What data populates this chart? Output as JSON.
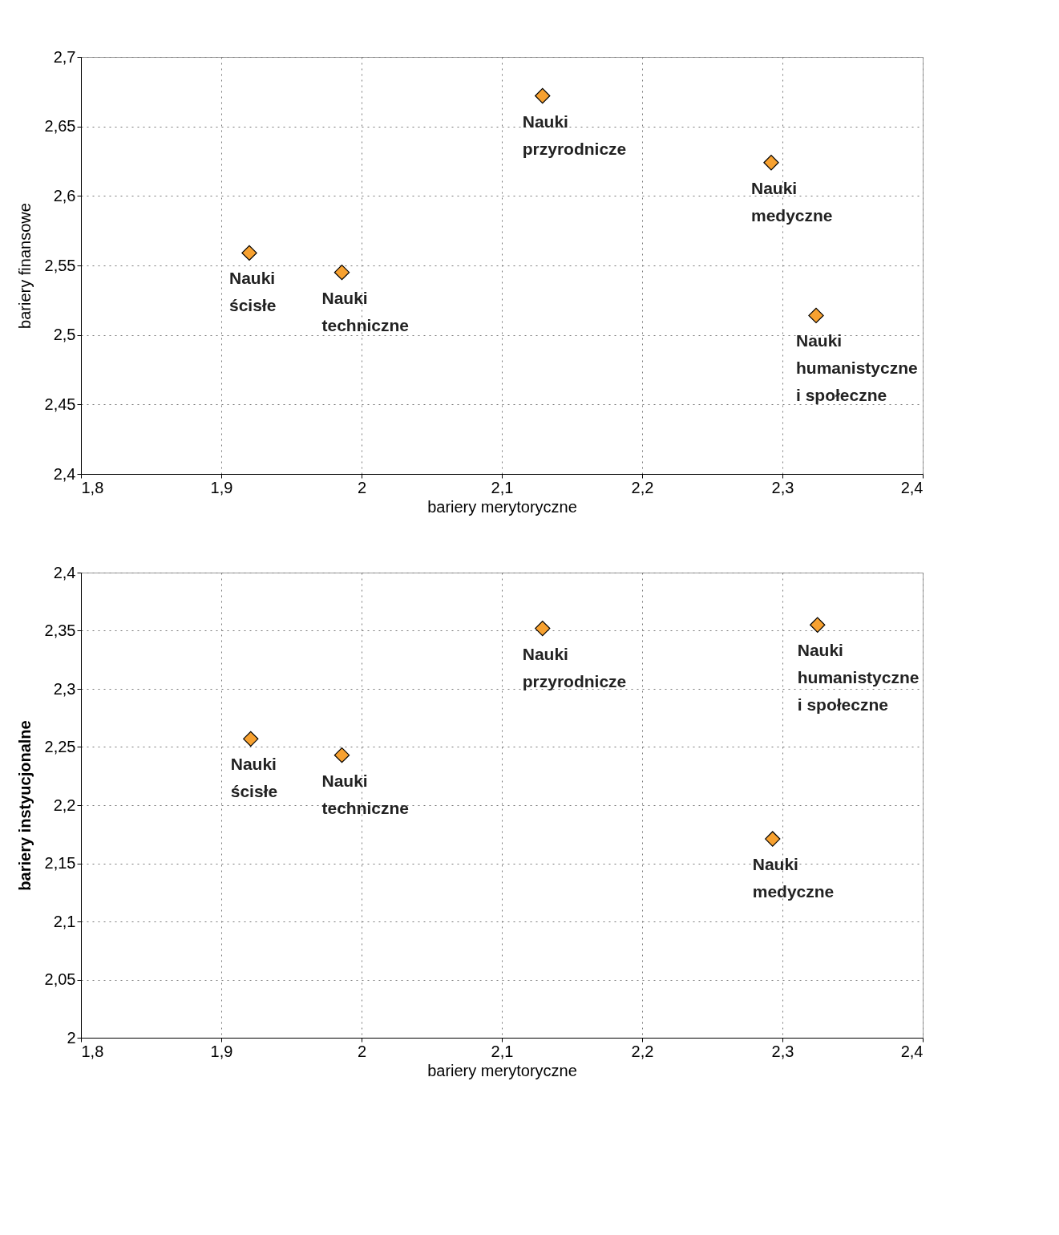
{
  "chart_data": [
    {
      "type": "scatter",
      "xlabel": "bariery merytoryczne",
      "ylabel": "bariery finansowe",
      "grid": true,
      "marker": "diamond",
      "xlim": [
        1.8,
        2.4
      ],
      "xticks": [
        {
          "value": 1.8,
          "label": "1,8"
        },
        {
          "value": 1.9,
          "label": "1,9"
        },
        {
          "value": 2,
          "label": "2"
        },
        {
          "value": 2.1,
          "label": "2,1"
        },
        {
          "value": 2.2,
          "label": "2,2"
        },
        {
          "value": 2.3,
          "label": "2,3"
        },
        {
          "value": 2.4,
          "label": "2,4"
        }
      ],
      "ylim": [
        2.4,
        2.7
      ],
      "yticks": [
        {
          "value": 2.4,
          "label": "2,4"
        },
        {
          "value": 2.45,
          "label": "2,45"
        },
        {
          "value": 2.5,
          "label": "2,5"
        },
        {
          "value": 2.55,
          "label": "2,55"
        },
        {
          "value": 2.6,
          "label": "2,6"
        },
        {
          "value": 2.65,
          "label": "2,65"
        },
        {
          "value": 2.7,
          "label": "2,7"
        }
      ],
      "series": [
        {
          "color": "#f7a130",
          "x": [
            1.92,
            1.986,
            2.129,
            2.292,
            2.324
          ],
          "values": [
            2.559,
            2.545,
            2.672,
            2.624,
            2.514
          ]
        }
      ],
      "annotations": [
        {
          "text": "Nauki\nścisłe",
          "x": 1.92,
          "y": 2.559
        },
        {
          "text": "Nauki\ntechniczne",
          "x": 1.986,
          "y": 2.545
        },
        {
          "text": "Nauki\nprzyrodnicze",
          "x": 2.129,
          "y": 2.672
        },
        {
          "text": "Nauki\nmedyczne",
          "x": 2.292,
          "y": 2.624
        },
        {
          "text": "Nauki\nhumanistyczne\ni społeczne",
          "x": 2.324,
          "y": 2.514
        }
      ]
    },
    {
      "type": "scatter",
      "xlabel": "bariery merytoryczne",
      "ylabel": "bariery instyucjonalne",
      "grid": true,
      "marker": "diamond",
      "xlim": [
        1.8,
        2.4
      ],
      "xticks": [
        {
          "value": 1.8,
          "label": "1,8"
        },
        {
          "value": 1.9,
          "label": "1,9"
        },
        {
          "value": 2,
          "label": "2"
        },
        {
          "value": 2.1,
          "label": "2,1"
        },
        {
          "value": 2.2,
          "label": "2,2"
        },
        {
          "value": 2.3,
          "label": "2,3"
        },
        {
          "value": 2.4,
          "label": "2,4"
        }
      ],
      "ylim": [
        2,
        2.4
      ],
      "yticks": [
        {
          "value": 2,
          "label": "2"
        },
        {
          "value": 2.05,
          "label": "2,05"
        },
        {
          "value": 2.1,
          "label": "2,1"
        },
        {
          "value": 2.15,
          "label": "2,15"
        },
        {
          "value": 2.2,
          "label": "2,2"
        },
        {
          "value": 2.25,
          "label": "2,25"
        },
        {
          "value": 2.3,
          "label": "2,3"
        },
        {
          "value": 2.35,
          "label": "2,35"
        },
        {
          "value": 2.4,
          "label": "2,4"
        }
      ],
      "series": [
        {
          "color": "#f7a130",
          "x": [
            1.921,
            1.986,
            2.129,
            2.325,
            2.293
          ],
          "values": [
            2.257,
            2.243,
            2.352,
            2.355,
            2.171
          ]
        }
      ],
      "annotations": [
        {
          "text": "Nauki\nścisłe",
          "x": 1.921,
          "y": 2.257
        },
        {
          "text": "Nauki\ntechniczne",
          "x": 1.986,
          "y": 2.243
        },
        {
          "text": "Nauki\nprzyrodnicze",
          "x": 2.129,
          "y": 2.352
        },
        {
          "text": "Nauki\nhumanistyczne\ni społeczne",
          "x": 2.325,
          "y": 2.355
        },
        {
          "text": "Nauki\nmedyczne",
          "x": 2.293,
          "y": 2.171
        }
      ]
    }
  ]
}
